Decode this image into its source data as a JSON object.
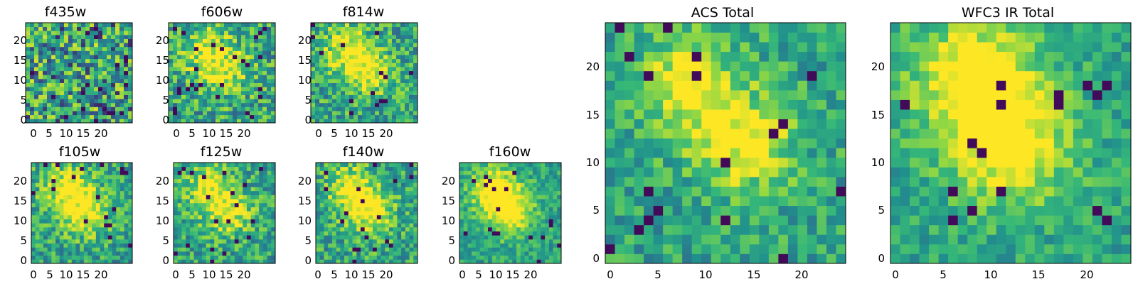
{
  "colormap": [
    "#440154",
    "#31688e",
    "#21908d",
    "#35b779",
    "#90d743",
    "#fde725"
  ],
  "chart_data": [
    {
      "type": "heatmap",
      "title": "f435w",
      "xticks": [
        "0",
        "5",
        "10",
        "15",
        "20"
      ],
      "yticks": [
        "0",
        "5",
        "10",
        "15",
        "20"
      ],
      "xlim": [
        0,
        25
      ],
      "ylim": [
        0,
        25
      ],
      "grid_size": 25
    },
    {
      "type": "heatmap",
      "title": "f606w",
      "xticks": [
        "0",
        "5",
        "10",
        "15",
        "20"
      ],
      "yticks": [
        "0",
        "5",
        "10",
        "15",
        "20"
      ],
      "xlim": [
        0,
        25
      ],
      "ylim": [
        0,
        25
      ],
      "grid_size": 25
    },
    {
      "type": "heatmap",
      "title": "f814w",
      "xticks": [
        "0",
        "5",
        "10",
        "15",
        "20"
      ],
      "yticks": [
        "0",
        "5",
        "10",
        "15",
        "20"
      ],
      "xlim": [
        0,
        25
      ],
      "ylim": [
        0,
        25
      ],
      "grid_size": 25
    },
    {
      "type": "heatmap",
      "title": "f105w",
      "xticks": [
        "0",
        "5",
        "10",
        "15",
        "20"
      ],
      "yticks": [
        "0",
        "5",
        "10",
        "15",
        "20"
      ],
      "xlim": [
        0,
        25
      ],
      "ylim": [
        0,
        25
      ],
      "grid_size": 25
    },
    {
      "type": "heatmap",
      "title": "f125w",
      "xticks": [
        "0",
        "5",
        "10",
        "15",
        "20"
      ],
      "yticks": [
        "0",
        "5",
        "10",
        "15",
        "20"
      ],
      "xlim": [
        0,
        25
      ],
      "ylim": [
        0,
        25
      ],
      "grid_size": 25
    },
    {
      "type": "heatmap",
      "title": "f140w",
      "xticks": [
        "0",
        "5",
        "10",
        "15",
        "20"
      ],
      "yticks": [
        "0",
        "5",
        "10",
        "15",
        "20"
      ],
      "xlim": [
        0,
        25
      ],
      "ylim": [
        0,
        25
      ],
      "grid_size": 25
    },
    {
      "type": "heatmap",
      "title": "f160w",
      "xticks": [
        "0",
        "5",
        "10",
        "15",
        "20"
      ],
      "yticks": [
        "0",
        "5",
        "10",
        "15",
        "20"
      ],
      "xlim": [
        0,
        25
      ],
      "ylim": [
        0,
        25
      ],
      "grid_size": 25
    },
    {
      "type": "heatmap",
      "title": "ACS Total",
      "xticks": [
        "0",
        "5",
        "10",
        "15",
        "20"
      ],
      "yticks": [
        "0",
        "5",
        "10",
        "15",
        "20"
      ],
      "xlim": [
        0,
        25
      ],
      "ylim": [
        0,
        25
      ],
      "grid_size": 25
    },
    {
      "type": "heatmap",
      "title": "WFC3 IR Total",
      "xticks": [
        "0",
        "5",
        "10",
        "15",
        "20"
      ],
      "yticks": [
        "0",
        "5",
        "10",
        "15",
        "20"
      ],
      "xlim": [
        0,
        25
      ],
      "ylim": [
        0,
        25
      ],
      "grid_size": 25
    }
  ]
}
